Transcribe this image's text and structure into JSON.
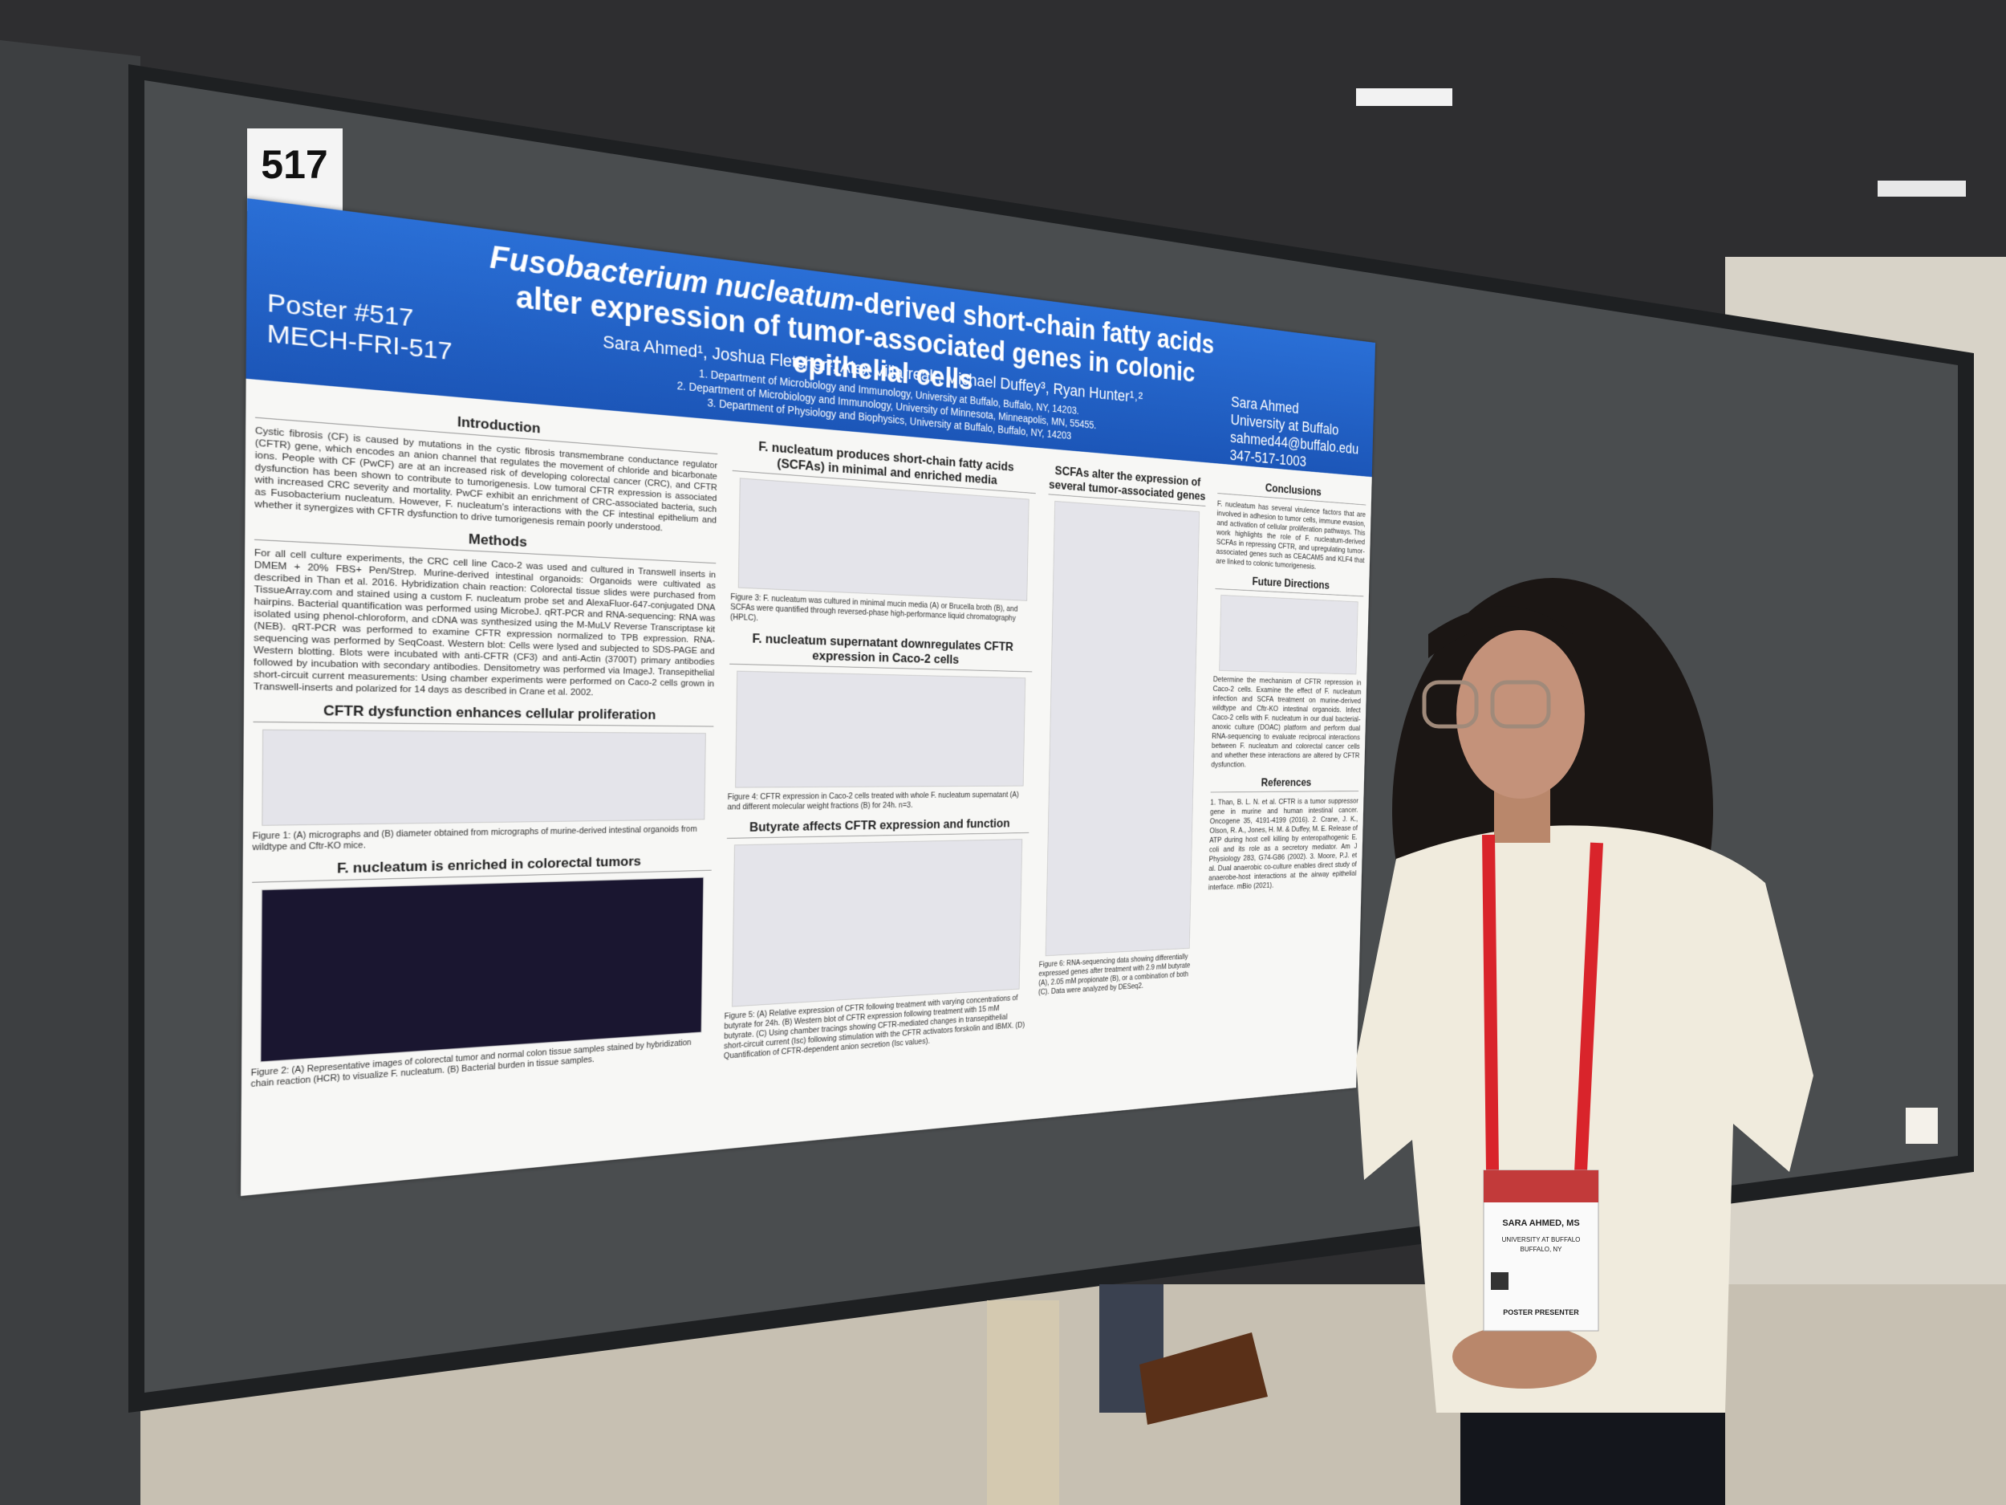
{
  "sign": {
    "number": "517"
  },
  "poster": {
    "id_lines": [
      "Poster #517",
      "MECH-FRI-517"
    ],
    "title_italic": "Fusobacterium nucleatum",
    "title_rest": "-derived short-chain fatty acids alter expression of tumor-associated genes in colonic epithelial cells",
    "authors": "Sara Ahmed¹, Joshua Fletcher², Alex Villarreal², Michael Duffey³, Ryan Hunter¹˒²",
    "affiliations": [
      "1. Department of Microbiology and Immunology, University at Buffalo, Buffalo, NY, 14203.",
      "2. Department of Microbiology and Immunology, University of Minnesota, Minneapolis, MN, 55455.",
      "3. Department of Physiology and Biophysics, University at Buffalo, Buffalo, NY, 14203"
    ],
    "contact": [
      "Sara Ahmed",
      "University at Buffalo",
      "sahmed44@buffalo.edu",
      "347-517-1003"
    ],
    "columns": [
      [
        {
          "heading": "Introduction",
          "text": "Cystic fibrosis (CF) is caused by mutations in the cystic fibrosis transmembrane conductance regulator (CFTR) gene, which encodes an anion channel that regulates the movement of chloride and bicarbonate ions. People with CF (PwCF) are at an increased risk of developing colorectal cancer (CRC), and CFTR dysfunction has been shown to contribute to tumorigenesis. Low tumoral CFTR expression is associated with increased CRC severity and mortality. PwCF exhibit an enrichment of CRC-associated bacteria, such as Fusobacterium nucleatum. However, F. nucleatum's interactions with the CF intestinal epithelium and whether it synergizes with CFTR dysfunction to drive tumorigenesis remain poorly understood."
        },
        {
          "heading": "Methods",
          "text": "For all cell culture experiments, the CRC cell line Caco-2 was used and cultured in Transwell inserts in DMEM + 20% FBS+ Pen/Strep. Murine-derived intestinal organoids: Organoids were cultivated as described in Than et al. 2016. Hybridization chain reaction: Colorectal tissue slides were purchased from TissueArray.com and stained using a custom F. nucleatum probe set and AlexaFluor-647-conjugated DNA hairpins. Bacterial quantification was performed using MicrobeJ. qRT-PCR and RNA-sequencing: RNA was isolated using phenol-chloroform, and cDNA was synthesized using the M-MuLV Reverse Transcriptase kit (NEB). qRT-PCR was performed to examine CFTR expression normalized to TPB expression. RNA-sequencing was performed by SeqCoast. Western blot: Cells were lysed and subjected to SDS-PAGE and Western blotting. Blots were incubated with anti-CFTR (CF3) and anti-Actin (3700T) primary antibodies followed by incubation with secondary antibodies. Densitometry was performed via ImageJ. Transepithelial short-circuit current measurements: Using chamber experiments were performed on Caco-2 cells grown in Transwell-inserts and polarized for 14 days as described in Crane et al. 2002."
        },
        {
          "heading": "CFTR dysfunction enhances cellular proliferation",
          "caption": "Figure 1: (A) micrographs and (B) diameter obtained from micrographs of murine-derived intestinal organoids from wildtype and Cftr-KO mice."
        },
        {
          "heading": "F. nucleatum is enriched in colorectal tumors",
          "caption": "Figure 2: (A) Representative images of colorectal tumor and normal colon tissue samples stained by hybridization chain reaction (HCR) to visualize F. nucleatum. (B) Bacterial burden in tissue samples."
        }
      ],
      [
        {
          "heading": "F. nucleatum produces short-chain fatty acids (SCFAs) in minimal and enriched media",
          "caption": "Figure 3: F. nucleatum was cultured in minimal mucin media (A) or Brucella broth (B), and SCFAs were quantified through reversed-phase high-performance liquid chromatography (HPLC)."
        },
        {
          "heading": "F. nucleatum supernatant downregulates CFTR expression in Caco-2 cells",
          "caption": "Figure 4: CFTR expression in Caco-2 cells treated with whole F. nucleatum supernatant (A) and different molecular weight fractions (B) for 24h. n=3."
        },
        {
          "heading": "Butyrate affects CFTR expression and function",
          "caption": "Figure 5: (A) Relative expression of CFTR following treatment with varying concentrations of butyrate for 24h. (B) Western blot of CFTR expression following treatment with 15 mM butyrate. (C) Using chamber tracings showing CFTR-mediated changes in transepithelial short-circuit current (Isc) following stimulation with the CFTR activators forskolin and IBMX. (D) Quantification of CFTR-dependent anion secretion (Isc values)."
        }
      ],
      [
        {
          "heading": "SCFAs alter the expression of several tumor-associated genes",
          "caption": "Figure 6: RNA-sequencing data showing differentially expressed genes after treatment with 2.9 mM butyrate (A), 2.05 mM propionate (B), or a combination of both (C). Data were analyzed by DESeq2."
        }
      ],
      [
        {
          "heading": "Conclusions",
          "text": "F. nucleatum has several virulence factors that are involved in adhesion to tumor cells, immune evasion, and activation of cellular proliferation pathways. This work highlights the role of F. nucleatum-derived SCFAs in repressing CFTR, and upregulating tumor-associated genes such as CEACAM5 and KLF4 that are linked to colonic tumorigenesis."
        },
        {
          "heading": "Future Directions",
          "text": "Determine the mechanism of CFTR repression in Caco-2 cells. Examine the effect of F. nucleatum infection and SCFA treatment on murine-derived wildtype and Cftr-KO intestinal organoids. Infect Caco-2 cells with F. nucleatum in our dual bacterial-anoxic culture (DOAC) platform and perform dual RNA-sequencing to evaluate reciprocal interactions between F. nucleatum and colorectal cancer cells and whether these interactions are altered by CFTR dysfunction."
        },
        {
          "heading": "References",
          "text": "1. Than, B. L. N. et al. CFTR is a tumor suppressor gene in murine and human intestinal cancer. Oncogene 35, 4191-4199 (2016). 2. Crane, J. K., Olson, R. A., Jones, H. M. & Duffey, M. E. Release of ATP during host cell killing by enteropathogenic E. coli and its role as a secretory mediator. Am J Physiology 283, G74-G86 (2002). 3. Moore, P.J. et al. Dual anaerobic co-culture enables direct study of anaerobe-host interactions at the airway epithelial interface. mBio (2021)."
        }
      ]
    ]
  },
  "badge": {
    "name": "SARA AHMED, MS",
    "org": "UNIVERSITY AT BUFFALO",
    "city": "BUFFALO, NY",
    "role": "POSTER PRESENTER"
  }
}
